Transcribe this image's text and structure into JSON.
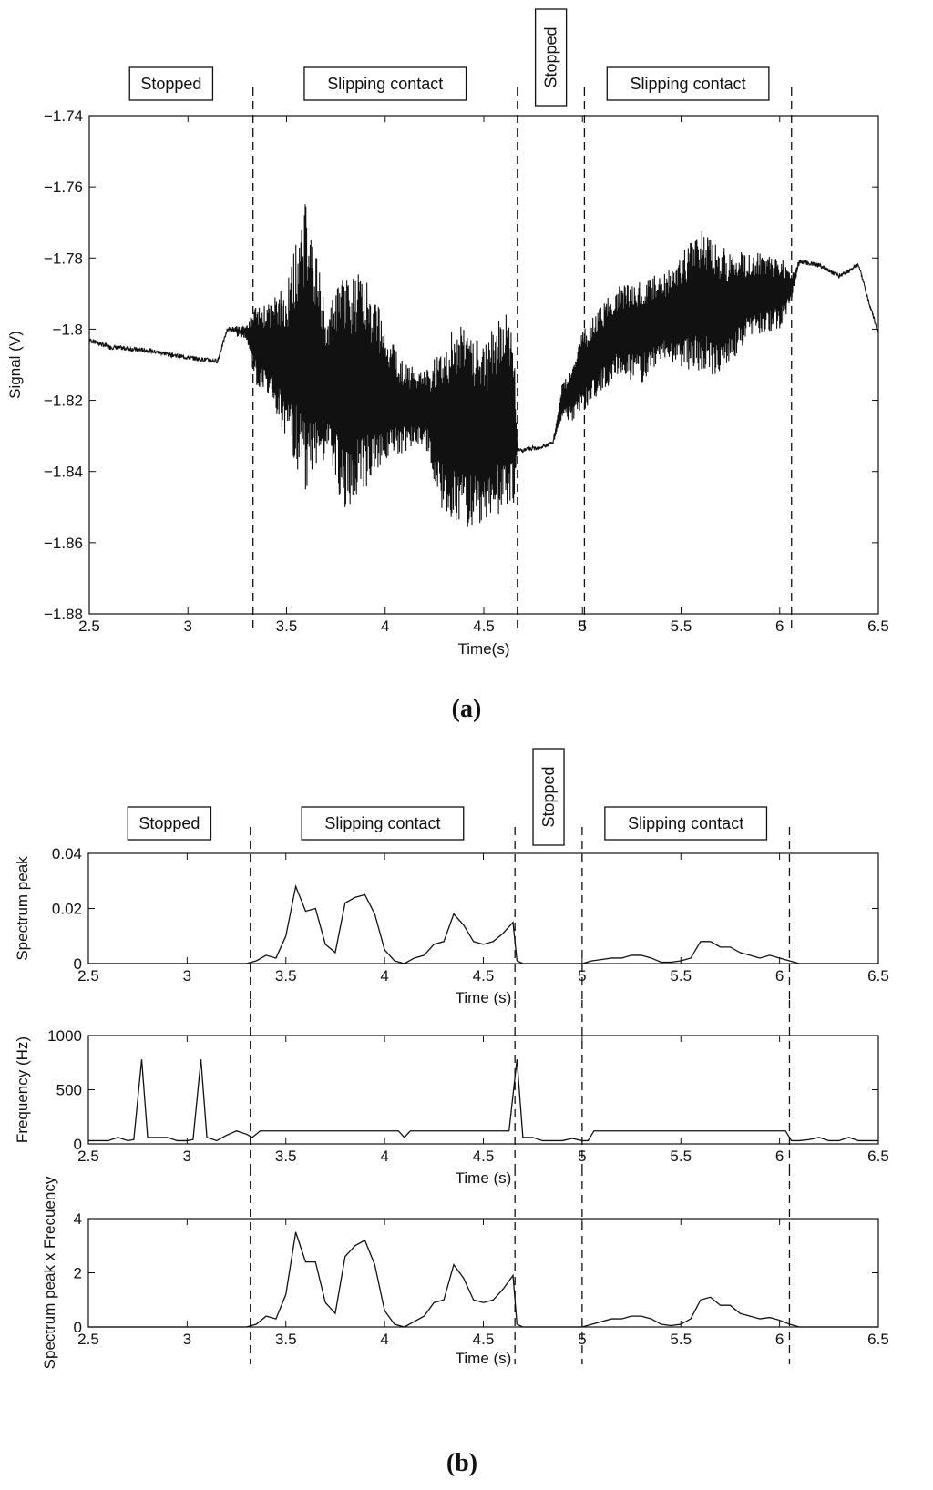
{
  "panel_labels": {
    "a": "(a)",
    "b": "(b)"
  },
  "chart_data": [
    {
      "type": "line",
      "panel": "a",
      "xlabel": "Time(s)",
      "ylabel": "Signal (V)",
      "xlim": [
        2.5,
        6.5
      ],
      "ylim": [
        -1.88,
        -1.74
      ],
      "xticks": [
        2.5,
        3,
        3.5,
        4,
        4.5,
        5,
        5.5,
        6,
        6.5
      ],
      "xtick_labels": [
        "2.5",
        "3",
        "3.5",
        "4",
        "4.5",
        "5",
        "5.5",
        "6",
        "6.5"
      ],
      "yticks": [
        -1.74,
        -1.76,
        -1.78,
        -1.8,
        -1.82,
        -1.84,
        -1.86,
        -1.88
      ],
      "ytick_labels": [
        "−1.74",
        "−1.76",
        "−1.78",
        "−1.8",
        "−1.82",
        "−1.84",
        "−1.86",
        "−1.88"
      ],
      "phase_boundaries": [
        3.33,
        4.67,
        5.01,
        6.06
      ],
      "phases": [
        {
          "label": "Stopped",
          "start": 2.5,
          "end": 3.33
        },
        {
          "label": "Slipping contact",
          "start": 3.33,
          "end": 4.67
        },
        {
          "label": "Stopped",
          "start": 4.67,
          "end": 5.01
        },
        {
          "label": "Slipping contact",
          "start": 5.01,
          "end": 6.06
        }
      ],
      "series": [
        {
          "style": "oscillating-band",
          "color": "#111111",
          "x": [
            2.5,
            2.6,
            2.8,
            3.0,
            3.15,
            3.2,
            3.3,
            3.35,
            3.4,
            3.5,
            3.6,
            3.7,
            3.8,
            3.9,
            4.0,
            4.1,
            4.2,
            4.3,
            4.4,
            4.5,
            4.6,
            4.65,
            4.67,
            4.7,
            4.8,
            4.85,
            4.9,
            4.95,
            5.0,
            5.1,
            5.2,
            5.3,
            5.4,
            5.5,
            5.6,
            5.7,
            5.8,
            5.9,
            6.0,
            6.06,
            6.1,
            6.2,
            6.3,
            6.4,
            6.45,
            6.5
          ],
          "center": [
            -1.803,
            -1.805,
            -1.806,
            -1.808,
            -1.809,
            -1.8,
            -1.801,
            -1.805,
            -1.805,
            -1.81,
            -1.805,
            -1.815,
            -1.818,
            -1.815,
            -1.818,
            -1.822,
            -1.822,
            -1.828,
            -1.826,
            -1.83,
            -1.823,
            -1.825,
            -1.834,
            -1.834,
            -1.833,
            -1.832,
            -1.82,
            -1.818,
            -1.812,
            -1.805,
            -1.8,
            -1.8,
            -1.797,
            -1.795,
            -1.792,
            -1.795,
            -1.792,
            -1.79,
            -1.79,
            -1.788,
            -1.781,
            -1.782,
            -1.785,
            -1.782,
            -1.792,
            -1.801
          ],
          "amplitude": [
            0.0,
            0.0,
            0.0,
            0.0,
            0.0,
            0.0,
            0.002,
            0.012,
            0.012,
            0.022,
            0.042,
            0.02,
            0.035,
            0.03,
            0.02,
            0.012,
            0.01,
            0.025,
            0.03,
            0.025,
            0.03,
            0.025,
            0.0,
            0.0,
            0.0,
            0.0,
            0.005,
            0.008,
            0.012,
            0.012,
            0.013,
            0.015,
            0.012,
            0.016,
            0.02,
            0.018,
            0.014,
            0.012,
            0.01,
            0.004,
            0.0,
            0.0,
            0.0,
            0.0,
            0.0,
            0.0
          ]
        }
      ]
    },
    {
      "type": "line",
      "panel": "b1",
      "xlabel": "Time (s)",
      "ylabel": "Spectrum peak",
      "xlim": [
        2.5,
        6.5
      ],
      "ylim": [
        0,
        0.04
      ],
      "xticks": [
        2.5,
        3,
        3.5,
        4,
        4.5,
        5,
        5.5,
        6,
        6.5
      ],
      "xtick_labels": [
        "2.5",
        "3",
        "3.5",
        "4",
        "4.5",
        "5",
        "5.5",
        "6",
        "6.5"
      ],
      "yticks": [
        0,
        0.02,
        0.04
      ],
      "ytick_labels": [
        "0",
        "0.02",
        "0.04"
      ],
      "phase_boundaries": [
        3.32,
        4.66,
        5.0,
        6.05
      ],
      "phases": [
        {
          "label": "Stopped",
          "start": 2.5,
          "end": 3.32
        },
        {
          "label": "Slipping contact",
          "start": 3.32,
          "end": 4.66
        },
        {
          "label": "Stopped",
          "start": 4.66,
          "end": 5.0
        },
        {
          "label": "Slipping contact",
          "start": 5.0,
          "end": 6.05
        }
      ],
      "series": [
        {
          "color": "#111111",
          "x": [
            2.5,
            3.3,
            3.35,
            3.4,
            3.45,
            3.5,
            3.55,
            3.6,
            3.65,
            3.7,
            3.75,
            3.8,
            3.85,
            3.9,
            3.95,
            4.0,
            4.05,
            4.1,
            4.15,
            4.2,
            4.25,
            4.3,
            4.35,
            4.4,
            4.45,
            4.5,
            4.55,
            4.6,
            4.65,
            4.67,
            4.7,
            5.0,
            5.05,
            5.1,
            5.15,
            5.2,
            5.25,
            5.3,
            5.35,
            5.4,
            5.45,
            5.5,
            5.55,
            5.6,
            5.65,
            5.7,
            5.75,
            5.8,
            5.85,
            5.9,
            5.95,
            6.0,
            6.05,
            6.1,
            6.5
          ],
          "y": [
            0,
            0,
            0.001,
            0.003,
            0.002,
            0.01,
            0.028,
            0.019,
            0.02,
            0.007,
            0.004,
            0.022,
            0.024,
            0.025,
            0.018,
            0.005,
            0.001,
            0.0,
            0.002,
            0.003,
            0.007,
            0.008,
            0.018,
            0.014,
            0.008,
            0.007,
            0.008,
            0.011,
            0.015,
            0.001,
            0.0,
            0.0,
            0.001,
            0.0015,
            0.002,
            0.002,
            0.003,
            0.003,
            0.002,
            0.0005,
            0.0005,
            0.001,
            0.002,
            0.008,
            0.008,
            0.006,
            0.006,
            0.004,
            0.003,
            0.002,
            0.003,
            0.002,
            0.001,
            0.0,
            0.0
          ]
        }
      ]
    },
    {
      "type": "line",
      "panel": "b2",
      "xlabel": "Time (s)",
      "ylabel": "Frequency (Hz)",
      "xlim": [
        2.5,
        6.5
      ],
      "ylim": [
        0,
        1000
      ],
      "xticks": [
        2.5,
        3,
        3.5,
        4,
        4.5,
        5,
        5.5,
        6,
        6.5
      ],
      "xtick_labels": [
        "2.5",
        "3",
        "3.5",
        "4",
        "4.5",
        "5",
        "5.5",
        "6",
        "6.5"
      ],
      "yticks": [
        0,
        500,
        1000
      ],
      "ytick_labels": [
        "0",
        "500",
        "1000"
      ],
      "phase_boundaries": [
        3.32,
        4.66,
        5.0,
        6.05
      ],
      "series": [
        {
          "color": "#111111",
          "x": [
            2.5,
            2.6,
            2.65,
            2.7,
            2.73,
            2.77,
            2.8,
            2.9,
            2.95,
            3.0,
            3.03,
            3.07,
            3.1,
            3.15,
            3.2,
            3.25,
            3.3,
            3.33,
            3.37,
            4.07,
            4.1,
            4.13,
            4.63,
            4.67,
            4.7,
            4.75,
            4.8,
            4.9,
            4.95,
            5.0,
            5.03,
            5.06,
            6.03,
            6.06,
            6.1,
            6.15,
            6.2,
            6.25,
            6.3,
            6.35,
            6.4,
            6.5
          ],
          "y": [
            30,
            30,
            60,
            30,
            40,
            780,
            60,
            60,
            30,
            30,
            40,
            780,
            60,
            30,
            80,
            120,
            90,
            60,
            120,
            120,
            60,
            120,
            120,
            780,
            60,
            60,
            30,
            30,
            50,
            30,
            30,
            120,
            120,
            30,
            30,
            40,
            60,
            30,
            30,
            60,
            30,
            30
          ]
        }
      ]
    },
    {
      "type": "line",
      "panel": "b3",
      "xlabel": "Time (s)",
      "ylabel": "Spectrum peak x Frecuency",
      "xlim": [
        2.5,
        6.5
      ],
      "ylim": [
        0,
        4
      ],
      "xticks": [
        2.5,
        3,
        3.5,
        4,
        4.5,
        5,
        5.5,
        6,
        6.5
      ],
      "xtick_labels": [
        "2.5",
        "3",
        "3.5",
        "4",
        "4.5",
        "5",
        "5.5",
        "6",
        "6.5"
      ],
      "yticks": [
        0,
        2,
        4
      ],
      "ytick_labels": [
        "0",
        "2",
        "4"
      ],
      "phase_boundaries": [
        3.32,
        4.66,
        5.0,
        6.05
      ],
      "series": [
        {
          "color": "#111111",
          "x": [
            2.5,
            3.3,
            3.35,
            3.4,
            3.45,
            3.5,
            3.55,
            3.6,
            3.65,
            3.7,
            3.75,
            3.8,
            3.85,
            3.9,
            3.95,
            4.0,
            4.05,
            4.1,
            4.15,
            4.2,
            4.25,
            4.3,
            4.35,
            4.4,
            4.45,
            4.5,
            4.55,
            4.6,
            4.65,
            4.67,
            4.7,
            5.0,
            5.05,
            5.1,
            5.15,
            5.2,
            5.25,
            5.3,
            5.35,
            5.4,
            5.45,
            5.5,
            5.55,
            5.6,
            5.65,
            5.7,
            5.75,
            5.8,
            5.85,
            5.9,
            5.95,
            6.0,
            6.05,
            6.1,
            6.5
          ],
          "y": [
            0,
            0,
            0.1,
            0.4,
            0.3,
            1.2,
            3.5,
            2.4,
            2.4,
            0.9,
            0.5,
            2.6,
            3.0,
            3.2,
            2.3,
            0.6,
            0.1,
            0.0,
            0.2,
            0.4,
            0.9,
            1.0,
            2.3,
            1.8,
            1.0,
            0.9,
            1.0,
            1.4,
            1.9,
            0.1,
            0.0,
            0.0,
            0.1,
            0.2,
            0.3,
            0.3,
            0.4,
            0.4,
            0.3,
            0.1,
            0.05,
            0.1,
            0.3,
            1.0,
            1.1,
            0.8,
            0.8,
            0.5,
            0.4,
            0.3,
            0.35,
            0.25,
            0.1,
            0.0,
            0.0
          ]
        }
      ]
    }
  ]
}
